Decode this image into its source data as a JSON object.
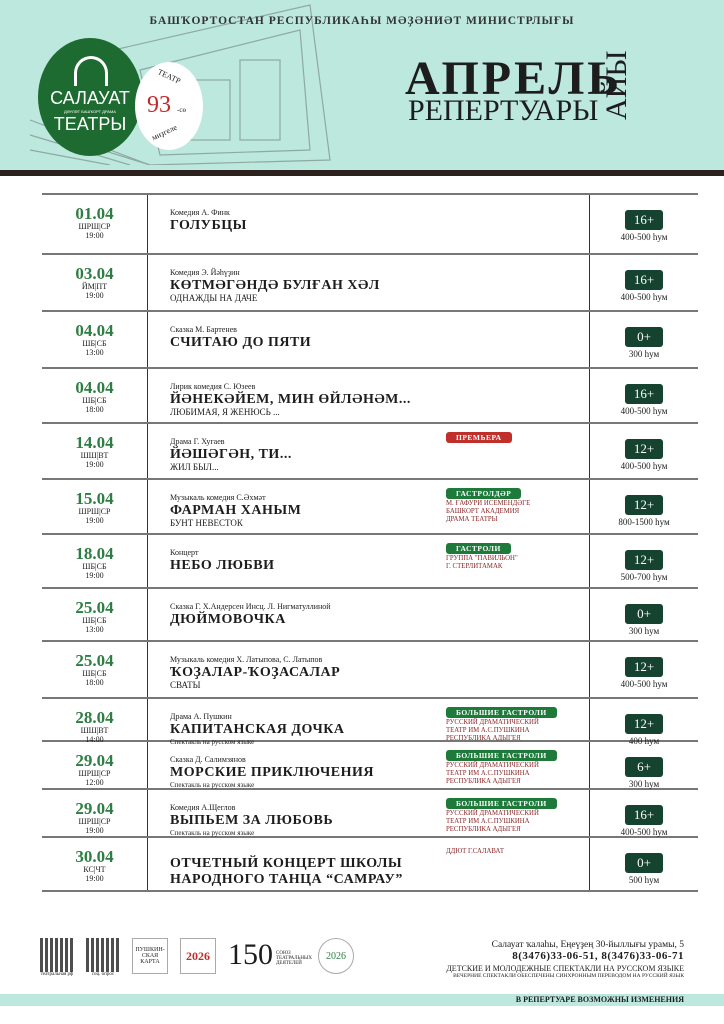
{
  "header": {
    "ministry": "БАШҠОРТОСТАН РЕСПУБЛИКАҺЫ МӘҘӘНИӘТ МИНИСТРЛЫҒЫ",
    "logo": {
      "line1": "САЛАУАТ",
      "line2": "ДӘҮЛӘТ БАШҠОРТ ДРАМА",
      "line3": "ТЕАТРЫ"
    },
    "badge": {
      "top": "ТЕАТР",
      "number": "93",
      "suffix": "-сө",
      "bottom": "миҙгеле"
    },
    "title_month": "АПРЕЛЬ",
    "title_rep": "РЕПЕРТУАРЫ",
    "title_side": "АЙЫ"
  },
  "colors": {
    "header_bg": "#bce8de",
    "date_green": "#2e7d43",
    "age_badge": "#16432f",
    "tag_green": "#1e7a3a",
    "tag_red": "#c0302b",
    "note_red": "#8b2828"
  },
  "events": [
    {
      "date": "01.04",
      "weekday": "ШРШ|СР",
      "time": "19:00",
      "genre": "Комедия  А. Финк",
      "title": "ГОЛУБЦЫ",
      "subtitle": "",
      "age": "16+",
      "price": "400-500 һум"
    },
    {
      "date": "03.04",
      "weekday": "ЙМ|ПТ",
      "time": "19:00",
      "genre": "Комедия   Э. Йәһүҙин",
      "title": "КӨТМӘГӘНДӘ БУЛҒАН ХӘЛ",
      "subtitle": "ОДНАЖДЫ НА ДАЧЕ",
      "age": "16+",
      "price": "400-500 һум"
    },
    {
      "date": "04.04",
      "weekday": "ШБ|СБ",
      "time": "13:00",
      "genre": "Сказка   М. Бартенев",
      "title": "СЧИТАЮ ДО ПЯТИ",
      "subtitle": "",
      "age": "0+",
      "price": "300 һум"
    },
    {
      "date": "04.04",
      "weekday": "ШБ|СБ",
      "time": "18:00",
      "genre": "Лирик комедия   С. Юзеев",
      "title": "ЙӘНЕКӘЙЕМ, МИН ӨЙЛӘНӘМ...",
      "subtitle": "ЛЮБИМАЯ, Я ЖЕНЮСЬ ...",
      "age": "16+",
      "price": "400-500 һум"
    },
    {
      "date": "14.04",
      "weekday": "ШШ|ВТ",
      "time": "19:00",
      "genre": "Драма   Г. Хугаев",
      "title": "ЙӘШӘГӘН, ТИ...",
      "subtitle": "ЖИЛ БЫЛ...",
      "tag": "ПРЕМЬЕРА",
      "tag_color": "red",
      "age": "12+",
      "price": "400-500 һум"
    },
    {
      "date": "15.04",
      "weekday": "ШРШ|СР",
      "time": "19:00",
      "genre": "Музыкаль комедия   С.Әхмәт",
      "title": "ФАРМАН ХАНЫМ",
      "subtitle": "БУНТ НЕВЕСТОК",
      "tag": "ГАСТРОЛДӘР",
      "tag_color": "green",
      "note": [
        "М. ҒАФУРИ ИСЕМЕНДӘГЕ",
        "БАШКОРТ АКАДЕМИЯ",
        "ДРАМА ТЕАТРЫ"
      ],
      "age": "12+",
      "price": "800-1500 һум"
    },
    {
      "date": "18.04",
      "weekday": "ШБ|СБ",
      "time": "19:00",
      "genre": "Концерт",
      "title": "НЕБО ЛЮБВИ",
      "subtitle": "",
      "tag": "ГАСТРОЛИ",
      "tag_color": "green",
      "note": [
        "ГРУППА \"ПАВИЛЬОН\"",
        "Г. СТЕРЛИТАМАК"
      ],
      "age": "12+",
      "price": "500-700 һум"
    },
    {
      "date": "25.04",
      "weekday": "ШБ|СБ",
      "time": "13:00",
      "genre": "Сказка  Г. Х.Андерсен  Инсц. Л. Нигматуллиной",
      "title": "ДЮЙМОВОЧКА",
      "subtitle": "",
      "age": "0+",
      "price": "300 һум"
    },
    {
      "date": "25.04",
      "weekday": "ШБ|СБ",
      "time": "18:00",
      "genre": "Музыкаль комедия   Х. Латыпова, С. Латыпов",
      "title": "ҠОҘАЛАР-ҠОҘАСАЛАР",
      "subtitle": "СВАТЫ",
      "age": "12+",
      "price": "400-500 һум"
    },
    {
      "date": "28.04",
      "weekday": "ШШ|ВТ",
      "time": "14:00",
      "genre": "Драма   А. Пушкин",
      "title": "КАПИТАНСКАЯ ДОЧКА",
      "small": "Спектакль на русском языке",
      "tag": "БОЛЬШИЕ ГАСТРОЛИ",
      "tag_color": "green",
      "note": [
        "РУССКИЙ ДРАМАТИЧЕСКИЙ",
        "ТЕАТР ИМ А.С.ПУШКИНА",
        "РЕСПУБЛИКА АДЫГЕЯ"
      ],
      "age": "12+",
      "price": "400 һум"
    },
    {
      "date": "29.04",
      "weekday": "ШРШ|СР",
      "time": "12:00",
      "genre": "Сказка   Д. Салимзянов",
      "title": "МОРСКИЕ ПРИКЛЮЧЕНИЯ",
      "small": "Спектакль на русском языке",
      "tag": "БОЛЬШИЕ ГАСТРОЛИ",
      "tag_color": "green",
      "note": [
        "РУССКИЙ ДРАМАТИЧЕСКИЙ",
        "ТЕАТР ИМ А.С.ПУШКИНА",
        "РЕСПУБЛИКА АДЫГЕЯ"
      ],
      "age": "6+",
      "price": "300 һум"
    },
    {
      "date": "29.04",
      "weekday": "ШРШ|СР",
      "time": "19:00",
      "genre": "Комедия   А.Щеглов",
      "title": "ВЫПЬЕМ ЗА ЛЮБОВЬ",
      "small": "Спектакль на русском языке",
      "tag": "БОЛЬШИЕ ГАСТРОЛИ",
      "tag_color": "green",
      "note": [
        "РУССКИЙ ДРАМАТИЧЕСКИЙ",
        "ТЕАТР ИМ А.С.ПУШКИНА",
        "РЕСПУБЛИКА АДЫГЕЯ"
      ],
      "age": "16+",
      "price": "400-500 һум"
    },
    {
      "date": "30.04",
      "weekday": "КС|ЧТ",
      "time": "19:00",
      "genre": "",
      "title": "ОТЧЕТНЫЙ КОНЦЕРТ ШКОЛЫ",
      "title2": "НАРОДНОГО ТАНЦА “САМРАУ”",
      "note": [
        "ДДЮТ Г.САЛАВАТ"
      ],
      "age": "0+",
      "price": "500 һум"
    }
  ],
  "footer": {
    "qr1_caption": "театральная рф",
    "qr2_caption": "соц. опрос",
    "logo_pushkin": "ПУШКИН-СКАЯ КАРТА",
    "logo_2026": "2026",
    "logo_150": "150",
    "logo_150_text": "СОЮЗ ТЕАТРАЛЬНЫХ ДЕЯТЕЛЕЙ",
    "logo_family": "2026",
    "address": "Салауат ҡалаһы, Еңеүҙең 30-йыллығы урамы, 5",
    "phones": "8(3476)33-06-51, 8(3476)33-06-71",
    "kids_note": "ДЕТСКИЕ И МОЛОДЕЖНЫЕ СПЕКТАКЛИ НА РУССКОМ ЯЗЫКЕ",
    "translation_note": "ВЕЧЕРНИЕ СПЕКТАКЛИ ОБЕСПЕЧЕНЫ СИНХРОННЫМ ПЕРЕВОДОМ НА РУССКИЙ ЯЗЫК",
    "changes": "В РЕПЕРТУАРЕ ВОЗМОЖНЫ ИЗМЕНЕНИЯ"
  }
}
